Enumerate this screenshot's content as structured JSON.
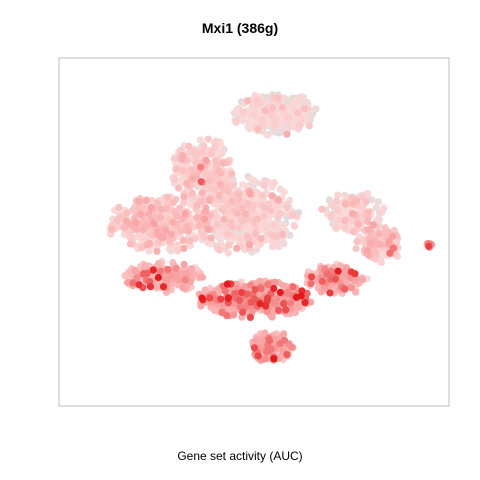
{
  "chart_data": {
    "type": "scatter",
    "title": "Mxi1 (386g)",
    "xlabel": "Gene set activity (AUC)",
    "ylabel": "",
    "grid": false,
    "colors": {
      "low": "#dcdcdc",
      "mid": "#fcd8d8",
      "high": "#e31a1c",
      "frame": "#bdbdbd"
    },
    "axes_drawn": false,
    "color_scale": "AUC, grey (low) → light pink → red (high)",
    "regions": [
      {
        "name": "top-cluster",
        "cx": 0.12,
        "cy": 0.74,
        "rx": 0.24,
        "ry": 0.14,
        "n": 360,
        "auc": 0.18
      },
      {
        "name": "upper-left-body",
        "cx": -0.28,
        "cy": 0.38,
        "rx": 0.18,
        "ry": 0.22,
        "n": 260,
        "auc": 0.35
      },
      {
        "name": "left-body",
        "cx": -0.52,
        "cy": 0.05,
        "rx": 0.3,
        "ry": 0.18,
        "n": 380,
        "auc": 0.4
      },
      {
        "name": "center-body",
        "cx": -0.05,
        "cy": 0.1,
        "rx": 0.3,
        "ry": 0.25,
        "n": 520,
        "auc": 0.3
      },
      {
        "name": "right-lobe",
        "cx": 0.55,
        "cy": 0.12,
        "rx": 0.18,
        "ry": 0.14,
        "n": 150,
        "auc": 0.3
      },
      {
        "name": "right-arm",
        "cx": 0.7,
        "cy": -0.08,
        "rx": 0.14,
        "ry": 0.12,
        "n": 140,
        "auc": 0.4
      },
      {
        "name": "lower-left",
        "cx": -0.5,
        "cy": -0.28,
        "rx": 0.22,
        "ry": 0.1,
        "n": 260,
        "auc": 0.55
      },
      {
        "name": "lower-center",
        "cx": 0.0,
        "cy": -0.42,
        "rx": 0.32,
        "ry": 0.12,
        "n": 380,
        "auc": 0.68
      },
      {
        "name": "lower-right",
        "cx": 0.45,
        "cy": -0.3,
        "rx": 0.18,
        "ry": 0.1,
        "n": 180,
        "auc": 0.58
      },
      {
        "name": "bottom-tail",
        "cx": 0.1,
        "cy": -0.72,
        "rx": 0.12,
        "ry": 0.1,
        "n": 160,
        "auc": 0.62
      },
      {
        "name": "far-right-tip",
        "cx": 0.97,
        "cy": -0.08,
        "rx": 0.03,
        "ry": 0.02,
        "n": 10,
        "auc": 0.7
      }
    ]
  }
}
